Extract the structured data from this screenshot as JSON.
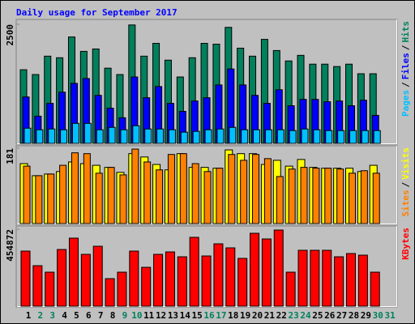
{
  "chart_data": {
    "type": "bar",
    "title": "Daily usage for September 2017",
    "categories": [
      "1",
      "2",
      "3",
      "4",
      "5",
      "6",
      "7",
      "8",
      "9",
      "10",
      "11",
      "12",
      "13",
      "14",
      "15",
      "16",
      "17",
      "18",
      "19",
      "20",
      "21",
      "22",
      "23",
      "24",
      "25",
      "26",
      "27",
      "28",
      "29",
      "30",
      "31"
    ],
    "category_colors": [
      "#000000",
      "#00805c",
      "#00805c",
      "#000000",
      "#000000",
      "#000000",
      "#000000",
      "#000000",
      "#00805c",
      "#00805c",
      "#000000",
      "#000000",
      "#000000",
      "#000000",
      "#000000",
      "#00805c",
      "#00805c",
      "#000000",
      "#000000",
      "#000000",
      "#000000",
      "#000000",
      "#00805c",
      "#00805c",
      "#000000",
      "#000000",
      "#000000",
      "#000000",
      "#000000",
      "#00805c",
      "#00805c"
    ],
    "legend_separator": "/",
    "panels": [
      {
        "ylim": [
          0,
          2500
        ],
        "yticks": [
          2500
        ],
        "series": [
          {
            "name": "Hits",
            "color": "#00805c",
            "values": [
              1546,
              1445,
              1831,
              1798,
              2234,
              1932,
              1982,
              1579,
              1445,
              2486,
              1831,
              2100,
              1747,
              1394,
              1798,
              2100,
              2083,
              2436,
              1999,
              1831,
              2184,
              1949,
              1730,
              1848,
              1663,
              1663,
              1613,
              1663,
              1462,
              1462,
              null
            ]
          },
          {
            "name": "Files",
            "color": "#0000ff",
            "values": [
              974,
              571,
              840,
              1075,
              1260,
              1361,
              1008,
              739,
              538,
              1394,
              958,
              1193,
              840,
              672,
              890,
              958,
              1226,
              1562,
              1226,
              1008,
              840,
              1126,
              790,
              924,
              924,
              874,
              890,
              790,
              907,
              588,
              null
            ]
          },
          {
            "name": "Pages",
            "color": "#00c0ff",
            "values": [
              319,
              286,
              302,
              286,
              420,
              420,
              286,
              336,
              286,
              370,
              302,
              302,
              286,
              235,
              252,
              286,
              302,
              336,
              286,
              286,
              286,
              286,
              269,
              302,
              286,
              269,
              269,
              269,
              269,
              269,
              null
            ]
          }
        ]
      },
      {
        "ylim": [
          0,
          181
        ],
        "yticks": [
          181
        ],
        "series": [
          {
            "name": "Visits",
            "color": "#ffff00",
            "values": [
              144,
              115,
              119,
              125,
              148,
              144,
              140,
              135,
              123,
              168,
              160,
              142,
              129,
              168,
              135,
              135,
              133,
              177,
              168,
              168,
              142,
              152,
              138,
              154,
              135,
              133,
              133,
              133,
              125,
              140,
              null
            ]
          },
          {
            "name": "Sites",
            "color": "#ff8000",
            "values": [
              138,
              115,
              119,
              140,
              170,
              168,
              121,
              135,
              117,
              179,
              148,
              129,
              166,
              168,
              144,
              125,
              133,
              166,
              152,
              166,
              156,
              113,
              131,
              135,
              133,
              133,
              131,
              121,
              127,
              121,
              null
            ]
          }
        ]
      },
      {
        "ylim": [
          0,
          454872
        ],
        "yticks": [
          454872
        ],
        "series": [
          {
            "name": "KBytes",
            "color": "#ff0000",
            "values": [
              325584,
              239400,
              201096,
              335160,
              402192,
              306432,
              354312,
              162792,
              201096,
              325584,
              229824,
              306432,
              320796,
              292068,
              406980,
              296856,
              368676,
              344736,
              282492,
              430920,
              397404,
              450072,
              201096,
              330372,
              330372,
              330372,
              292068,
              311220,
              301644,
              201096,
              null
            ]
          }
        ]
      }
    ]
  }
}
